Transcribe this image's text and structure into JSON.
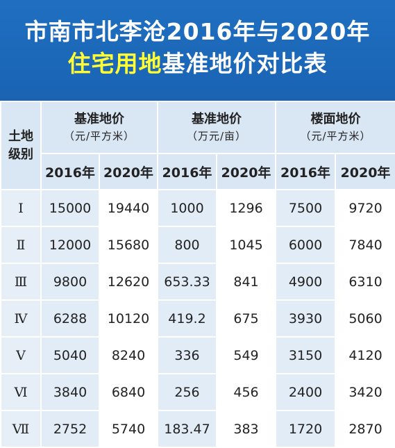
{
  "title": {
    "line1": "市南市北李沧2016年与2020年",
    "line2_highlight": "住宅用地",
    "line2_rest": "基准地价对比表"
  },
  "header": {
    "grade_label": "土地级别",
    "groups": [
      {
        "main": "基准地价",
        "unit": "（元/平方米）"
      },
      {
        "main": "基准地价",
        "unit": "（万元/亩）"
      },
      {
        "main": "楼面地价",
        "unit": "（元/平方米）"
      }
    ],
    "years": [
      "2016年",
      "2020年",
      "2016年",
      "2020年",
      "2016年",
      "2020年"
    ]
  },
  "rows": [
    {
      "grade": "Ⅰ",
      "cells": [
        "15000",
        "19440",
        "1000",
        "1296",
        "7500",
        "9720"
      ]
    },
    {
      "grade": "Ⅱ",
      "cells": [
        "12000",
        "15680",
        "800",
        "1045",
        "6000",
        "7840"
      ]
    },
    {
      "grade": "Ⅲ",
      "cells": [
        "9800",
        "12620",
        "653.33",
        "841",
        "4900",
        "6310"
      ]
    },
    {
      "grade": "Ⅳ",
      "cells": [
        "6288",
        "10120",
        "419.2",
        "675",
        "3930",
        "5060"
      ]
    },
    {
      "grade": "Ⅴ",
      "cells": [
        "5040",
        "8240",
        "336",
        "549",
        "3150",
        "4120"
      ]
    },
    {
      "grade": "Ⅵ",
      "cells": [
        "3840",
        "6840",
        "256",
        "456",
        "2400",
        "3420"
      ]
    },
    {
      "grade": "Ⅶ",
      "cells": [
        "2752",
        "5740",
        "183.47",
        "383",
        "1720",
        "2870"
      ]
    }
  ],
  "colors": {
    "title_bg": "#1f6fc1",
    "title_highlight": "#ffff33",
    "header_bg": "#d9e6f3"
  }
}
